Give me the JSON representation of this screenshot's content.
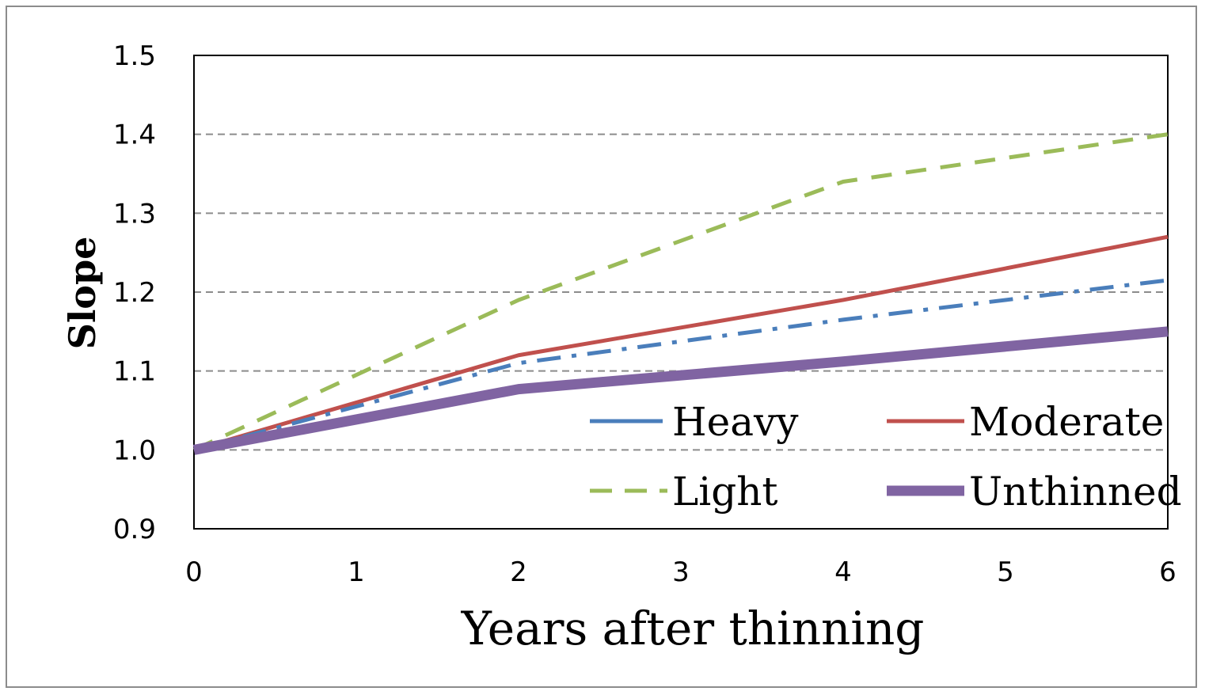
{
  "chart_data": {
    "type": "line",
    "title": "",
    "xlabel": "Years after thinning",
    "ylabel": "Slope",
    "x": [
      0,
      2,
      4,
      6
    ],
    "xlim": [
      0,
      6
    ],
    "ylim": [
      0.9,
      1.5
    ],
    "x_ticks": [
      "0",
      "1",
      "2",
      "3",
      "4",
      "5",
      "6"
    ],
    "y_ticks": [
      "0.9",
      "1.0",
      "1.1",
      "1.2",
      "1.3",
      "1.4",
      "1.5"
    ],
    "grid": "horizontal dashed",
    "legend_position": "bottom-right",
    "series": [
      {
        "name": "Heavy",
        "values": [
          1.0,
          1.11,
          1.165,
          1.215
        ],
        "color": "#4a7ebb",
        "style": "dash-dot"
      },
      {
        "name": "Moderate",
        "values": [
          1.0,
          1.12,
          1.19,
          1.27
        ],
        "color": "#c0504d",
        "style": "solid"
      },
      {
        "name": "Light",
        "values": [
          1.0,
          1.19,
          1.34,
          1.4
        ],
        "color": "#9bbb59",
        "style": "dashed"
      },
      {
        "name": "Unthinned",
        "values": [
          1.0,
          1.077,
          1.112,
          1.15
        ],
        "color": "#8064a2",
        "style": "thick-solid"
      }
    ]
  }
}
